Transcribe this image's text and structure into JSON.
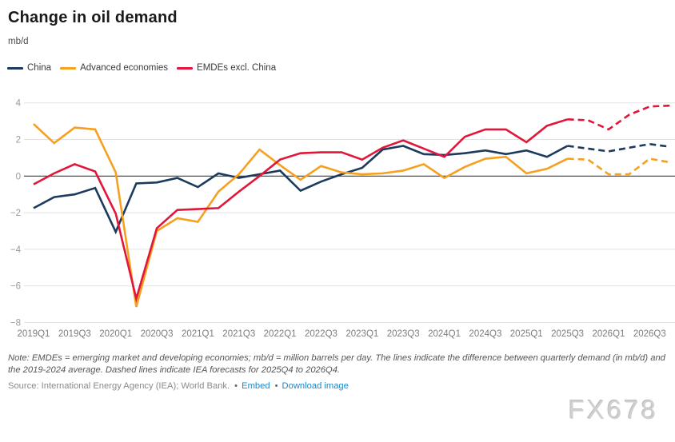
{
  "header": {
    "title": "Change in oil demand",
    "unit": "mb/d"
  },
  "legend": [
    {
      "label": "China",
      "color": "#1b3a5e"
    },
    {
      "label": "Advanced economies",
      "color": "#f6a01f"
    },
    {
      "label": "EMDEs excl. China",
      "color": "#e0173a"
    }
  ],
  "chart_data": {
    "type": "line",
    "title": "Change in oil demand",
    "ylabel": "mb/d",
    "ylim": [
      -8,
      4
    ],
    "y_ticks": [
      4,
      2,
      0,
      -2,
      -4,
      -6,
      -8
    ],
    "grid": true,
    "legend_position": "top",
    "forecast_start": "2025Q4",
    "x_tick_labels": [
      "2019Q1",
      "2019Q3",
      "2020Q1",
      "2020Q3",
      "2021Q1",
      "2021Q3",
      "2022Q1",
      "2022Q3",
      "2023Q1",
      "2023Q3",
      "2024Q1",
      "2024Q3",
      "2025Q1",
      "2025Q3",
      "2026Q1",
      "2026Q3"
    ],
    "categories": [
      "2019Q1",
      "2019Q2",
      "2019Q3",
      "2019Q4",
      "2020Q1",
      "2020Q2",
      "2020Q3",
      "2020Q4",
      "2021Q1",
      "2021Q2",
      "2021Q3",
      "2021Q4",
      "2022Q1",
      "2022Q2",
      "2022Q3",
      "2022Q4",
      "2023Q1",
      "2023Q2",
      "2023Q3",
      "2023Q4",
      "2024Q1",
      "2024Q2",
      "2024Q3",
      "2024Q4",
      "2025Q1",
      "2025Q2",
      "2025Q3",
      "2025Q4",
      "2026Q1",
      "2026Q2",
      "2026Q3",
      "2026Q4"
    ],
    "series": [
      {
        "name": "China",
        "color": "#1b3a5e",
        "values": [
          -1.75,
          -1.15,
          -1.0,
          -0.65,
          -3.05,
          -0.4,
          -0.35,
          -0.1,
          -0.6,
          0.15,
          -0.1,
          0.1,
          0.3,
          -0.8,
          -0.3,
          0.1,
          0.45,
          1.45,
          1.65,
          1.2,
          1.15,
          1.25,
          1.4,
          1.2,
          1.4,
          1.05,
          1.65,
          1.5,
          1.35,
          1.55,
          1.75,
          1.6
        ]
      },
      {
        "name": "Advanced economies",
        "color": "#f6a01f",
        "values": [
          2.85,
          1.8,
          2.65,
          2.55,
          0.2,
          -7.15,
          -3.0,
          -2.3,
          -2.5,
          -0.85,
          0.1,
          1.45,
          0.6,
          -0.2,
          0.55,
          0.2,
          0.1,
          0.15,
          0.3,
          0.65,
          -0.1,
          0.5,
          0.95,
          1.05,
          0.15,
          0.4,
          0.95,
          0.9,
          0.1,
          0.1,
          0.95,
          0.75
        ]
      },
      {
        "name": "EMDEs excl. China",
        "color": "#e0173a",
        "values": [
          -0.45,
          0.15,
          0.65,
          0.25,
          -2.05,
          -6.7,
          -2.85,
          -1.85,
          -1.8,
          -1.75,
          -0.85,
          0.0,
          0.9,
          1.25,
          1.3,
          1.3,
          0.9,
          1.55,
          1.95,
          1.5,
          1.05,
          2.15,
          2.55,
          2.55,
          1.85,
          2.75,
          3.1,
          3.05,
          2.55,
          3.35,
          3.8,
          3.85
        ]
      }
    ]
  },
  "footer": {
    "note": "Note: EMDEs = emerging market and developing economies; mb/d = million barrels per day. The lines indicate the difference between quarterly demand (in mb/d) and the 2019-2024 average. Dashed lines indicate IEA forecasts for 2025Q4 to 2026Q4.",
    "source": "Source: International Energy Agency (IEA); World Bank.",
    "separator": "•",
    "links": [
      {
        "label": "Embed"
      },
      {
        "label": "Download image"
      }
    ],
    "link_color": "#1d86c8",
    "watermark": "FX678"
  }
}
